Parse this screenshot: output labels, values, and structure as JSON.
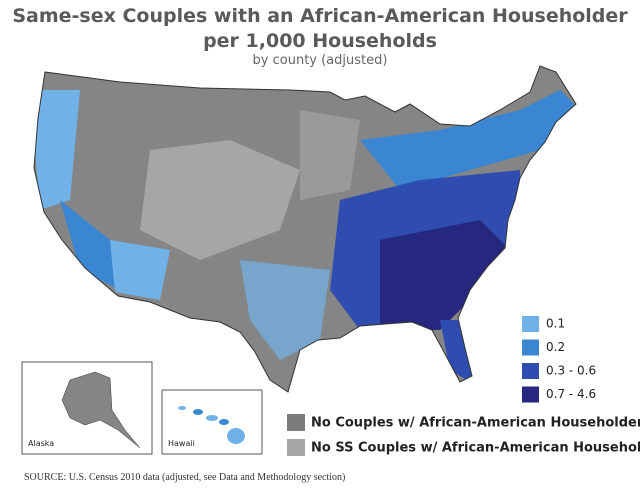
{
  "header": {
    "title_line1": "Same-sex Couples with an African-American Householder",
    "title_line2": "per 1,000 Households",
    "subtitle": "by county (adjusted)"
  },
  "legend": {
    "items": [
      {
        "label": "0.1",
        "color": "#70b2e8"
      },
      {
        "label": "0.2",
        "color": "#3a86d2"
      },
      {
        "label": "0.3 - 0.6",
        "color": "#2f4db0"
      },
      {
        "label": "0.7 - 4.6",
        "color": "#25287e"
      }
    ]
  },
  "legend_gray": {
    "items": [
      {
        "label": "No Couples w/ African-American Householder",
        "color": "#7c7c7c"
      },
      {
        "label": "No SS Couples w/ African-American Householder",
        "color": "#a6a6a6"
      }
    ]
  },
  "insets": {
    "alaska": "Alaska",
    "hawaii": "Hawaii"
  },
  "source": "SOURCE: U.S. Census 2010 data (adjusted, see Data and Methodology section)"
}
